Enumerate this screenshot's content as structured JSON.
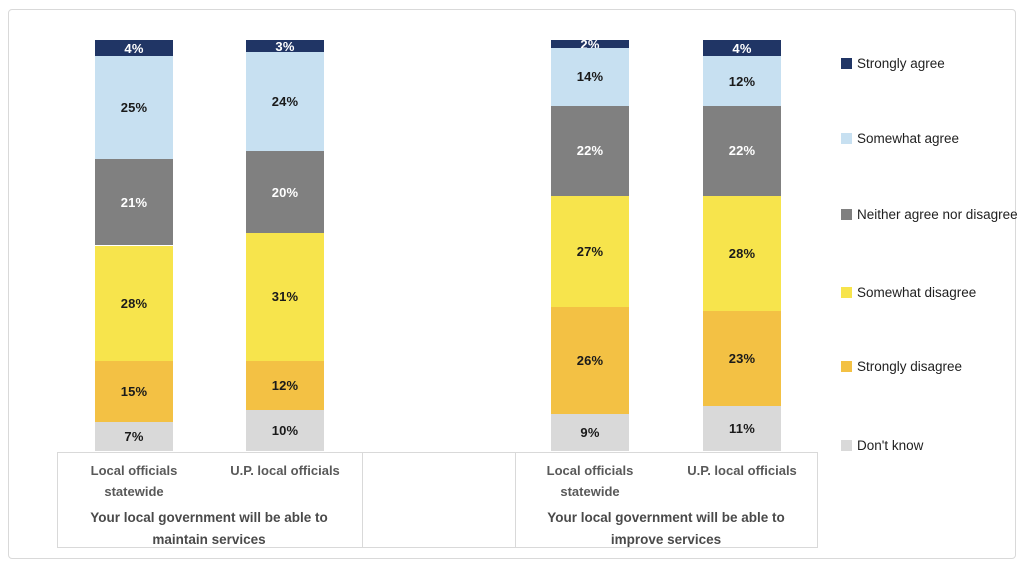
{
  "figure": {
    "background": "#FFFFFF",
    "border_color": "#D9D9D9"
  },
  "chart_data": {
    "type": "bar",
    "variant": "stacked-column-100",
    "value_suffix": "%",
    "ylim": [
      0,
      100
    ],
    "grid": false,
    "legend_position": "right",
    "groups": [
      {
        "title": "Your local government will be able to maintain services",
        "title_lines": [
          "Your local government will be able to",
          "maintain services"
        ]
      },
      {
        "title": "Your local government will be able to improve services",
        "title_lines": [
          "Your local government will be able to",
          "improve services"
        ]
      }
    ],
    "bars": [
      {
        "group": 0,
        "label": "Local officials statewide",
        "label_lines": [
          "Local officials",
          "statewide"
        ]
      },
      {
        "group": 0,
        "label": "U.P. local officials",
        "label_lines": [
          "U.P. local officials"
        ]
      },
      {
        "group": 1,
        "label": "Local officials statewide",
        "label_lines": [
          "Local officials",
          "statewide"
        ]
      },
      {
        "group": 1,
        "label": "U.P. local officials",
        "label_lines": [
          "U.P. local officials"
        ]
      }
    ],
    "series": [
      {
        "name": "Strongly agree",
        "color": "#203565",
        "label_color": "#FFFFFF",
        "values": [
          4,
          3,
          2,
          4
        ]
      },
      {
        "name": "Somewhat agree",
        "color": "#C7E0F1",
        "label_color": "#1A1A1A",
        "values": [
          25,
          24,
          14,
          12
        ]
      },
      {
        "name": "Neither agree nor disagree",
        "color": "#808080",
        "label_color": "#FFFFFF",
        "values": [
          21,
          20,
          22,
          22
        ]
      },
      {
        "name": "Somewhat disagree",
        "color": "#F7E44C",
        "label_color": "#1A1A1A",
        "values": [
          28,
          31,
          27,
          28
        ]
      },
      {
        "name": "Strongly disagree",
        "color": "#F3C144",
        "label_color": "#1A1A1A",
        "values": [
          15,
          12,
          26,
          23
        ]
      },
      {
        "name": "Don't know",
        "color": "#D9D9D9",
        "label_color": "#1A1A1A",
        "values": [
          7,
          10,
          9,
          11
        ]
      }
    ]
  }
}
